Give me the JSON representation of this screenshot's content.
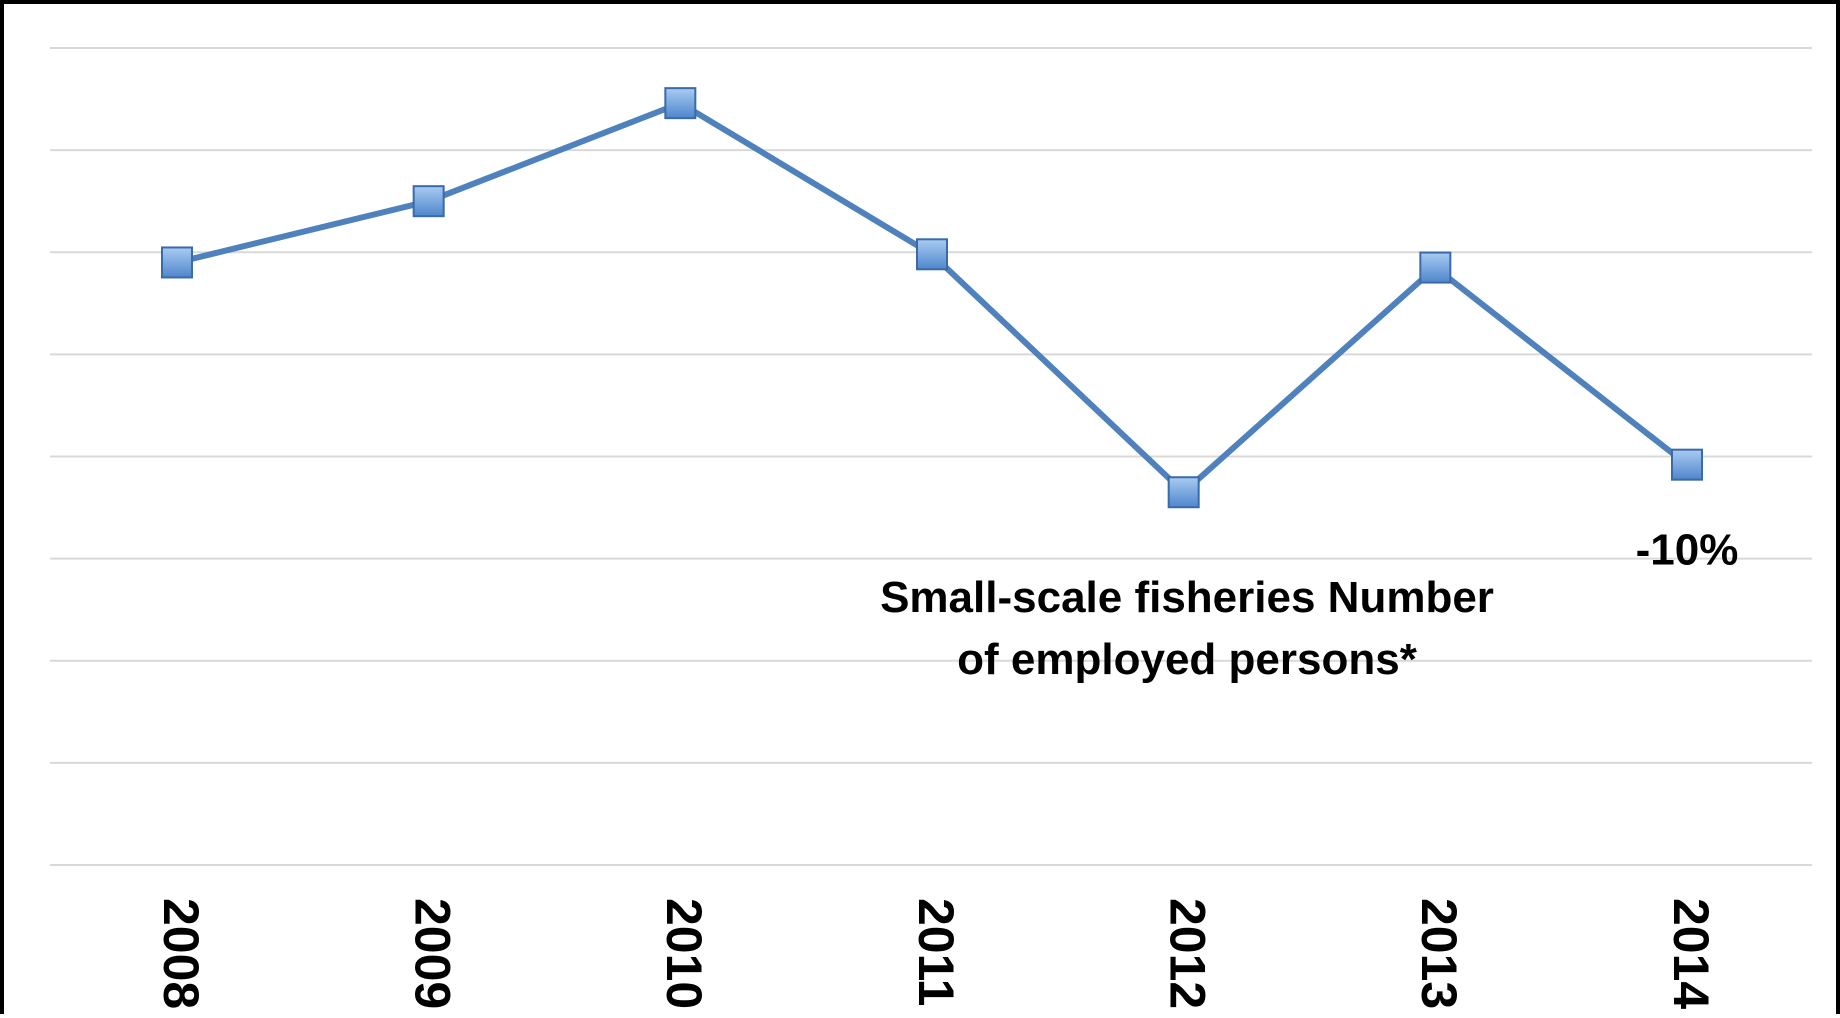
{
  "chart_data": {
    "type": "line",
    "title_lines": [
      "Small-scale fisheries Number",
      "of employed persons*"
    ],
    "categories": [
      "2008",
      "2009",
      "2010",
      "2011",
      "2012",
      "2013",
      "2014"
    ],
    "series": [
      {
        "values": [
          5.9,
          6.5,
          7.46,
          5.98,
          3.65,
          5.85,
          3.92
        ]
      }
    ],
    "ylim": [
      0,
      8
    ],
    "gridlines": 9,
    "grid": true,
    "yticks_visible": false,
    "annotations": [
      {
        "text": "-10%",
        "category_index": 6
      }
    ],
    "colors": {
      "line": "#4F81BD",
      "marker_fill": "#6FA0DC",
      "marker_stroke": "#3A6AA8",
      "grid": "#D9D9D9"
    }
  }
}
